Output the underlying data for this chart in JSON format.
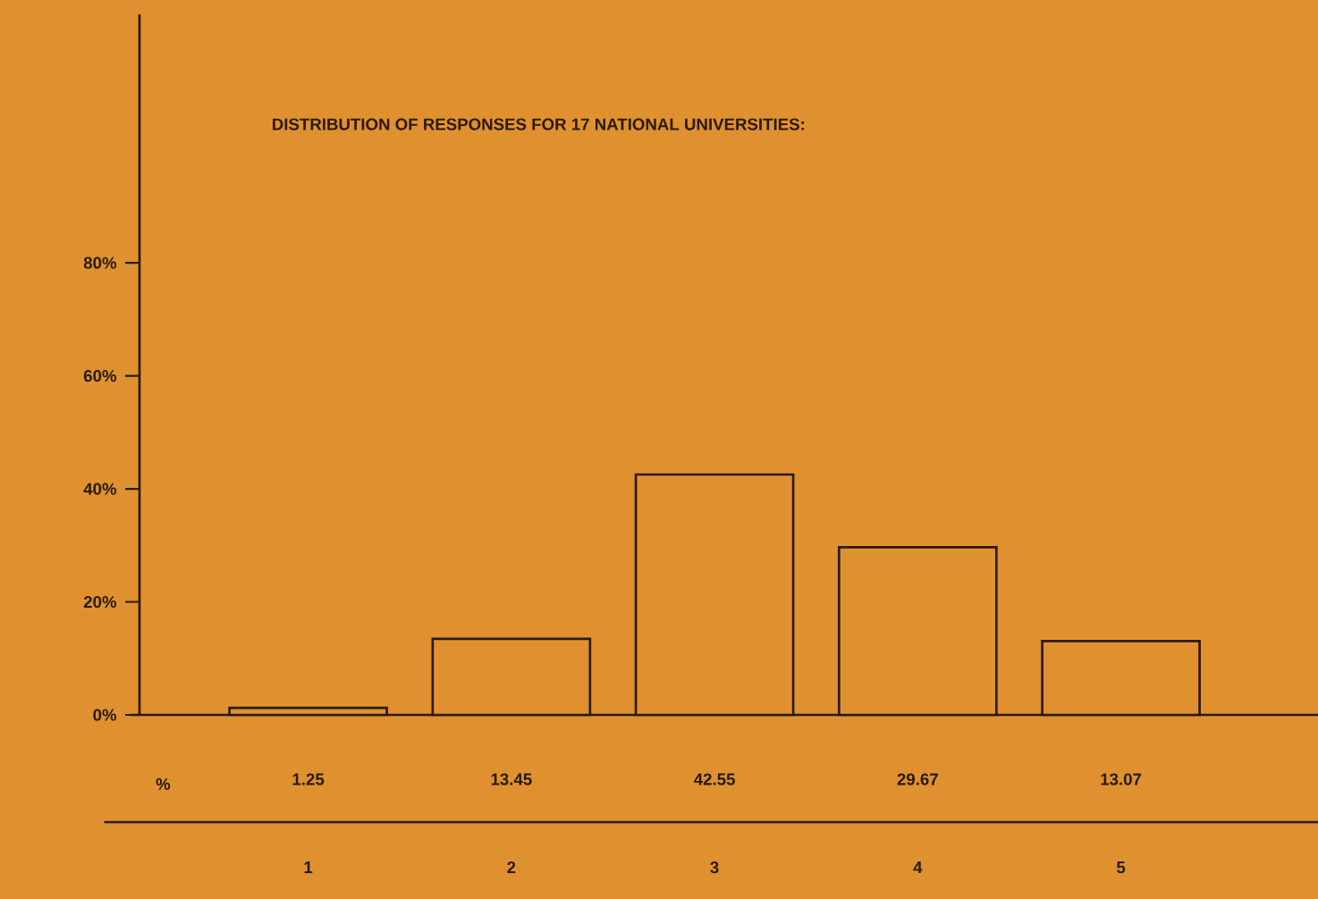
{
  "chart_data": {
    "type": "bar",
    "title": "DISTRIBUTION OF RESPONSES FOR 17 NATIONAL UNIVERSITIES:",
    "categories": [
      "1",
      "2",
      "3",
      "4",
      "5"
    ],
    "values": [
      1.25,
      13.45,
      42.55,
      29.67,
      13.07
    ],
    "color": "#e0912f",
    "ylim": [
      0,
      124
    ],
    "yticks": [
      {
        "value": 0,
        "label": "0%"
      },
      {
        "value": 20,
        "label": "20%"
      },
      {
        "value": 40,
        "label": "40%"
      },
      {
        "value": 60,
        "label": "60%"
      },
      {
        "value": 80,
        "label": "80%"
      }
    ],
    "data_labels": true,
    "annotations": [
      "%"
    ]
  }
}
